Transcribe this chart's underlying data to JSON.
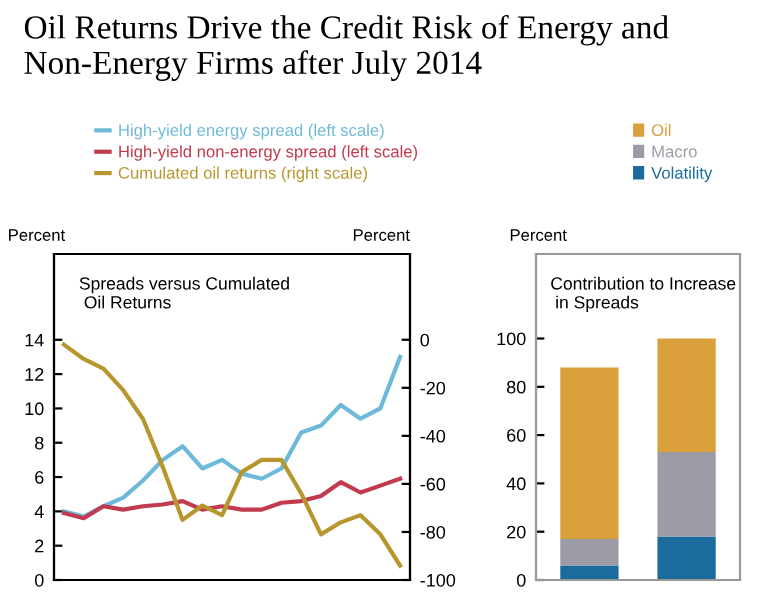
{
  "chart_data": [
    {
      "type": "line",
      "title": "Oil Returns Drive the Credit Risk of Energy and Non-Energy Firms after July 2014",
      "subtitle": "Spreads versus Cumulated\n Oil Returns",
      "ylabel": "Percent",
      "y2label": "Percent",
      "categories": [
        null,
        null,
        null,
        null,
        null,
        null,
        null,
        null,
        null,
        null,
        null,
        null,
        null,
        null,
        null,
        null,
        null,
        null
      ],
      "series": [
        {
          "name": "High-yield energy spread (left scale)",
          "color": "#6cb9d9",
          "values": [
            4.0,
            3.7,
            4.3,
            4.8,
            5.8,
            7.0,
            7.8,
            6.5,
            7.0,
            6.2,
            5.9,
            6.5,
            8.6,
            9.0,
            10.2,
            9.4,
            10.0,
            13.0
          ]
        },
        {
          "name": "High-yield non-energy spread (left scale)",
          "color": "#c23a4e",
          "values": [
            3.9,
            3.6,
            4.3,
            4.1,
            4.3,
            4.4,
            4.6,
            4.1,
            4.3,
            4.1,
            4.1,
            4.5,
            4.6,
            4.9,
            5.7,
            5.1,
            5.5,
            5.9
          ]
        },
        {
          "name": "Cumulated oil returns (right scale)",
          "color": "#b8962e",
          "axis": "y2",
          "values": [
            -2,
            -8,
            -12,
            -21,
            -33,
            -53,
            -75,
            -69,
            -73,
            -55,
            -50,
            -50,
            -64,
            -81,
            -76,
            -73,
            -81,
            -94
          ]
        }
      ],
      "ylim": [
        0,
        19
      ],
      "yticks": [
        0,
        2,
        4,
        6,
        8,
        10,
        12,
        14
      ],
      "y2lim": [
        -100,
        35.7
      ],
      "y2ticks": [
        -100,
        -80,
        -60,
        -40,
        -20,
        0
      ],
      "legend": "top",
      "tick_labels": "y"
    },
    {
      "type": "bar",
      "stacked": true,
      "subtitle": "Contribution to Increase\n in Spreads",
      "ylabel": "Percent",
      "categories": [
        null,
        null
      ],
      "series": [
        {
          "name": "Volatility",
          "color": "#1b6b9c",
          "values": [
            6,
            18
          ]
        },
        {
          "name": "Macro",
          "color": "#9b9ca6",
          "values": [
            11,
            35
          ]
        },
        {
          "name": "Oil",
          "color": "#d9a03c",
          "values": [
            71,
            47
          ]
        }
      ],
      "ylim": [
        0,
        135
      ],
      "yticks": [
        0,
        20,
        40,
        60,
        80,
        100
      ],
      "legend": "top right",
      "tick_labels": "y"
    }
  ]
}
